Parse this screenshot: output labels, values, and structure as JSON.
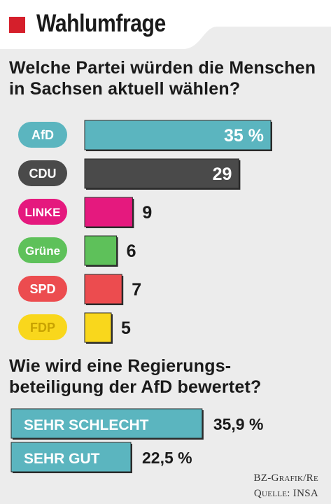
{
  "header": {
    "title": "Wahlumfrage"
  },
  "question1": {
    "line1": "Welche Partei würden die Menschen",
    "line2": "in Sachsen aktuell wählen?"
  },
  "question2": {
    "line1": "Wie wird eine Regierungs-",
    "line2": "beteiligung der AfD bewertet?"
  },
  "colors": {
    "brand_red": "#d51f2b",
    "afd": "#5bb5bf",
    "cdu": "#4a4a4a",
    "linke": "#e5197e",
    "gruene": "#5ec15a",
    "spd": "#ec4c4f",
    "fdp": "#f9d71c",
    "rating": "#5bb5bf"
  },
  "chart_data": [
    {
      "type": "bar",
      "orientation": "horizontal",
      "categories": [
        "AfD",
        "CDU",
        "LINKE",
        "Grüne",
        "SPD",
        "FDP"
      ],
      "values": [
        35,
        29,
        9,
        6,
        7,
        5
      ],
      "value_labels": [
        "35 %",
        "29",
        "9",
        "6",
        "7",
        "5"
      ],
      "label_inside": [
        true,
        true,
        false,
        false,
        false,
        false
      ],
      "colors": [
        "#5bb5bf",
        "#4a4a4a",
        "#e5197e",
        "#5ec15a",
        "#ec4c4f",
        "#f9d71c"
      ],
      "pill_text_colors": [
        "#ffffff",
        "#ffffff",
        "#ffffff",
        "#ffffff",
        "#ffffff",
        "#c8a200"
      ],
      "unit": "%"
    },
    {
      "type": "bar",
      "orientation": "horizontal",
      "categories": [
        "SEHR SCHLECHT",
        "SEHR GUT"
      ],
      "values": [
        35.9,
        22.5
      ],
      "value_labels": [
        "35,9 %",
        "22,5 %"
      ],
      "color": "#5bb5bf",
      "unit": "%"
    }
  ],
  "source": {
    "line1": "BZ-Grafik/Re",
    "line2": "Quelle: INSA"
  }
}
